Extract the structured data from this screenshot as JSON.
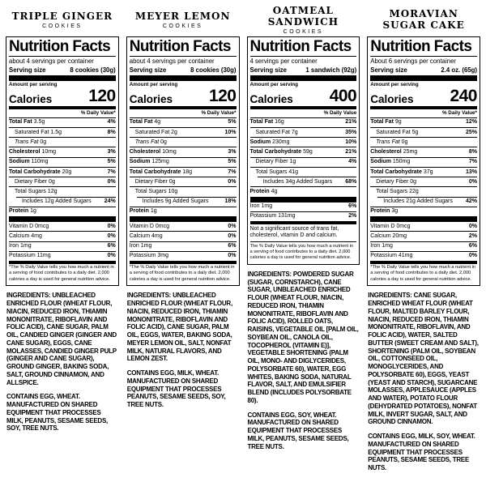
{
  "page": {
    "background": "#ffffff",
    "text_color": "#000000"
  },
  "products": [
    {
      "title_lines": [
        "TRIPLE GINGER"
      ],
      "subtitle": "COOKIES",
      "nf": {
        "heading": "Nutrition Facts",
        "servings": "about 4 servings per container",
        "serving_size_label": "Serving size",
        "serving_size_value": "8 cookies (30g)",
        "amount_per": "Amount per serving",
        "calories_word": "Calories",
        "calories_value": "120",
        "dv_header": "% Daily Value*",
        "main_rows": [
          {
            "name": "Total Fat",
            "value": "3.5g",
            "dv": "4%",
            "cls": "b"
          },
          {
            "name": "Saturated Fat",
            "value": "1.5g",
            "dv": "8%",
            "cls": "i1"
          },
          {
            "name": "Trans Fat",
            "value": "0g",
            "dv": "",
            "cls": "i1 it"
          },
          {
            "name": "Cholesterol",
            "value": "10mg",
            "dv": "3%",
            "cls": "b"
          },
          {
            "name": "Sodium",
            "value": "110mg",
            "dv": "5%",
            "cls": "b"
          },
          {
            "name": "Total Carbohydrate",
            "value": "20g",
            "dv": "7%",
            "cls": "b"
          },
          {
            "name": "Dietary Fiber",
            "value": "0g",
            "dv": "0%",
            "cls": "i1"
          },
          {
            "name": "Total Sugars",
            "value": "12g",
            "dv": "",
            "cls": "i1"
          },
          {
            "name": "Includes 12g Added Sugars",
            "value": "",
            "dv": "24%",
            "cls": "i2"
          },
          {
            "name": "Protein",
            "value": "1g",
            "dv": "",
            "cls": "b"
          }
        ],
        "micro_rows": [
          {
            "name": "Vitamin D",
            "value": "0mcg",
            "dv": "0%"
          },
          {
            "name": "Calcium",
            "value": "4mg",
            "dv": "0%"
          },
          {
            "name": "Iron",
            "value": "1mg",
            "dv": "6%"
          },
          {
            "name": "Potassium",
            "value": "11mg",
            "dv": "0%"
          }
        ],
        "not_significant": "",
        "footnote": "*The % Daily Value tells you how much a nutrient in a serving of food contributes to a daily diet. 2,000 calories a day is used for general nutrition advice."
      },
      "ingredients_label": "INGREDIENTS:",
      "ingredients_text": "UNBLEACHED ENRICHED FLOUR (WHEAT FLOUR, NIACIN, REDUCED IRON, THIAMIN MONONITRATE, RIBOFLAVIN AND FOLIC ACID), CANE SUGAR, PALM OIL, CANDIED GINGER (GINGER AND CANE SUGAR), EGGS, CANE MOLASSES, CANDIED GINGER PULP (GINGER AND CANE SUGAR), GROUND GINGER, BAKING SODA, SALT, GROUND CINNAMON, AND ALLSPICE.",
      "contains": "CONTAINS EGG, WHEAT. MANUFACTURED ON SHARED EQUIPMENT THAT PROCESSES MILK, PEANUTS, SESAME SEEDS, SOY, TREE NUTS."
    },
    {
      "title_lines": [
        "MEYER LEMON"
      ],
      "subtitle": "COOKIES",
      "nf": {
        "heading": "Nutrition Facts",
        "servings": "about 4 servings per container",
        "serving_size_label": "Serving size",
        "serving_size_value": "8 cookies (30g)",
        "amount_per": "Amount per serving",
        "calories_word": "Calories",
        "calories_value": "120",
        "dv_header": "% Daily Value*",
        "main_rows": [
          {
            "name": "Total Fat",
            "value": "4g",
            "dv": "5%",
            "cls": "b"
          },
          {
            "name": "Saturated Fat",
            "value": "2g",
            "dv": "10%",
            "cls": "i1"
          },
          {
            "name": "Trans Fat",
            "value": "0g",
            "dv": "",
            "cls": "i1 it"
          },
          {
            "name": "Cholesterol",
            "value": "10mg",
            "dv": "3%",
            "cls": "b"
          },
          {
            "name": "Sodium",
            "value": "125mg",
            "dv": "5%",
            "cls": "b"
          },
          {
            "name": "Total Carbohydrate",
            "value": "18g",
            "dv": "7%",
            "cls": "b"
          },
          {
            "name": "Dietary Fiber",
            "value": "0g",
            "dv": "0%",
            "cls": "i1"
          },
          {
            "name": "Total Sugars",
            "value": "10g",
            "dv": "",
            "cls": "i1"
          },
          {
            "name": "Includes 9g Added Sugars",
            "value": "",
            "dv": "18%",
            "cls": "i2"
          },
          {
            "name": "Protein",
            "value": "1g",
            "dv": "",
            "cls": "b"
          }
        ],
        "micro_rows": [
          {
            "name": "Vitamin D",
            "value": "0mcg",
            "dv": "0%"
          },
          {
            "name": "Calcium",
            "value": "4mg",
            "dv": "0%"
          },
          {
            "name": "Iron",
            "value": "1mg",
            "dv": "6%"
          },
          {
            "name": "Potassium",
            "value": "3mg",
            "dv": "0%"
          }
        ],
        "not_significant": "",
        "footnote": "*The % Daily Value tells you how much a nutrient in a serving of food contributes to a daily diet. 2,000 calories a day is used for general nutrition advice."
      },
      "ingredients_label": "INGREDIENTS:",
      "ingredients_text": "UNBLEACHED ENRICHED FLOUR (WHEAT FLOUR, NIACIN, REDUCED IRON, THIAMIN MONONITRATE, RIBOFLAVIN AND FOLIC ACID), CANE SUGAR, PALM OIL, EGGS, WATER, BAKING SODA, MEYER LEMON OIL, SALT, NONFAT MILK, NATURAL FLAVORS, AND LEMON ZEST.",
      "contains": "CONTAINS EGG, MILK, WHEAT. MANUFACTURED ON SHARED EQUIPMENT THAT PROCESSES PEANUTS, SESAME SEEDS, SOY, TREE NUTS."
    },
    {
      "title_lines": [
        "OATMEAL SANDWICH"
      ],
      "subtitle": "COOKIES",
      "nf": {
        "heading": "Nutrition Facts",
        "servings": "4 servings per container",
        "serving_size_label": "Serving size",
        "serving_size_value": "1 sandwich (92g)",
        "amount_per": "Amount per serving",
        "calories_word": "Calories",
        "calories_value": "400",
        "dv_header": "% Daily Value",
        "main_rows": [
          {
            "name": "Total Fat",
            "value": "16g",
            "dv": "21%",
            "cls": "b"
          },
          {
            "name": "Saturated Fat",
            "value": "7g",
            "dv": "35%",
            "cls": "i1"
          },
          {
            "name": "Sodium",
            "value": "230mg",
            "dv": "10%",
            "cls": "b"
          },
          {
            "name": "Total Carbohydrate",
            "value": "59g",
            "dv": "21%",
            "cls": "b"
          },
          {
            "name": "Dietary Fiber",
            "value": "1g",
            "dv": "4%",
            "cls": "i1"
          },
          {
            "name": "Total Sugars",
            "value": "41g",
            "dv": "",
            "cls": "i1"
          },
          {
            "name": "Includes 34g Added Sugars",
            "value": "",
            "dv": "68%",
            "cls": "i2"
          },
          {
            "name": "Protein",
            "value": "4g",
            "dv": "",
            "cls": "b"
          }
        ],
        "micro_rows": [
          {
            "name": "Iron",
            "value": "1mg",
            "dv": "6%"
          },
          {
            "name": "Potassium",
            "value": "131mg",
            "dv": "2%"
          }
        ],
        "not_significant": "Not a significant source of trans fat, cholesterol, vitamin D and calcium.",
        "footnote": "The % Daily Value tells you how much a nutrient in a serving of food contributes to a daily diet. 2,000 calories a day is used for general nutrition advice."
      },
      "ingredients_label": "INGREDIENTS:",
      "ingredients_text": "POWDERED SUGAR (SUGAR, CORNSTARCH), CANE SUGAR, UNBLEACHED ENRICHED FLOUR (WHEAT FLOUR, NIACIN, REDUCED IRON, THIAMIN MONONITRATE, RIBOFLAVIN AND FOLIC ACID), ROLLED OATS, RAISINS, VEGETABLE OIL [PALM OIL, SOYBEAN OIL, CANOLA OIL, TOCOPHEROL (VITAMIN E)], VEGETABLE SHORTENING (PALM OIL, MONO- AND DIGLYCERIDES, POLYSORBATE 60), WATER, EGG WHITES, BAKING SODA, NATURAL FLAVOR, SALT, AND EMULSIFIER BLEND (INCLUDES POLYSORBATE 80).",
      "contains": "CONTAINS EGG, SOY, WHEAT. MANUFACTURED ON SHARED EQUIPMENT THAT PROCESSES MILK, PEANUTS, SESAME SEEDS, TREE NUTS."
    },
    {
      "title_lines": [
        "MORAVIAN",
        "SUGAR CAKE"
      ],
      "subtitle": "",
      "nf": {
        "heading": "Nutrition Facts",
        "servings": "About 6 servings per container",
        "serving_size_label": "Serving size",
        "serving_size_value": "2.4 oz. (65g)",
        "amount_per": "Amount per serving",
        "calories_word": "Calories",
        "calories_value": "240",
        "dv_header": "% Daily Value*",
        "main_rows": [
          {
            "name": "Total Fat",
            "value": "9g",
            "dv": "12%",
            "cls": "b"
          },
          {
            "name": "Saturated Fat",
            "value": "5g",
            "dv": "25%",
            "cls": "i1"
          },
          {
            "name": "Trans Fat",
            "value": "0g",
            "dv": "",
            "cls": "i1 it"
          },
          {
            "name": "Cholesterol",
            "value": "25mg",
            "dv": "8%",
            "cls": "b"
          },
          {
            "name": "Sodium",
            "value": "150mg",
            "dv": "7%",
            "cls": "b"
          },
          {
            "name": "Total Carbohydrate",
            "value": "37g",
            "dv": "13%",
            "cls": "b"
          },
          {
            "name": "Dietary Fiber",
            "value": "0g",
            "dv": "0%",
            "cls": "i1"
          },
          {
            "name": "Total Sugars",
            "value": "22g",
            "dv": "",
            "cls": "i1"
          },
          {
            "name": "Includes 21g Added Sugars",
            "value": "",
            "dv": "42%",
            "cls": "i2"
          },
          {
            "name": "Protein",
            "value": "3g",
            "dv": "",
            "cls": "b"
          }
        ],
        "micro_rows": [
          {
            "name": "Vitamin D",
            "value": "0mcg",
            "dv": "0%"
          },
          {
            "name": "Calcium",
            "value": "20mg",
            "dv": "2%"
          },
          {
            "name": "Iron",
            "value": "1mg",
            "dv": "6%"
          },
          {
            "name": "Potassium",
            "value": "41mg",
            "dv": "0%"
          }
        ],
        "not_significant": "",
        "footnote": "*The % Daily Value tells you how much a nutrient in a serving of food contributes to a daily diet. 2,000 calories a day is used for general nutrition advice."
      },
      "ingredients_label": "INGREDIENTS:",
      "ingredients_text": "CANE SUGAR, ENRICHED WHEAT FLOUR (WHEAT FLOUR, MALTED BARLEY FLOUR, NIACIN, REDUCED IRON, THIAMIN MONONITRATE, RIBOFLAVIN, AND FOLIC ACID), WATER, SALTED BUTTER (SWEET CREAM AND SALT), SHORTENING (PALM OIL, SOYBEAN OIL, COTTONSEED OIL, MONOGLYCERIDES, AND POLYSORBATE 60), EGGS, YEAST (YEAST AND STARCH), SUGARCANE MOLASSES, APPLESAUCE (APPLES AND WATER), POTATO FLOUR (DEHYDRATED POTATOES), NONFAT MILK, INVERT SUGAR, SALT, AND GROUND CINNAMON.",
      "contains": "CONTAINS EGG, MILK, SOY, WHEAT. MANUFACTURED ON SHARED EQUIPMENT THAT PROCESSES PEANUTS, SESAME SEEDS, TREE NUTS."
    }
  ]
}
